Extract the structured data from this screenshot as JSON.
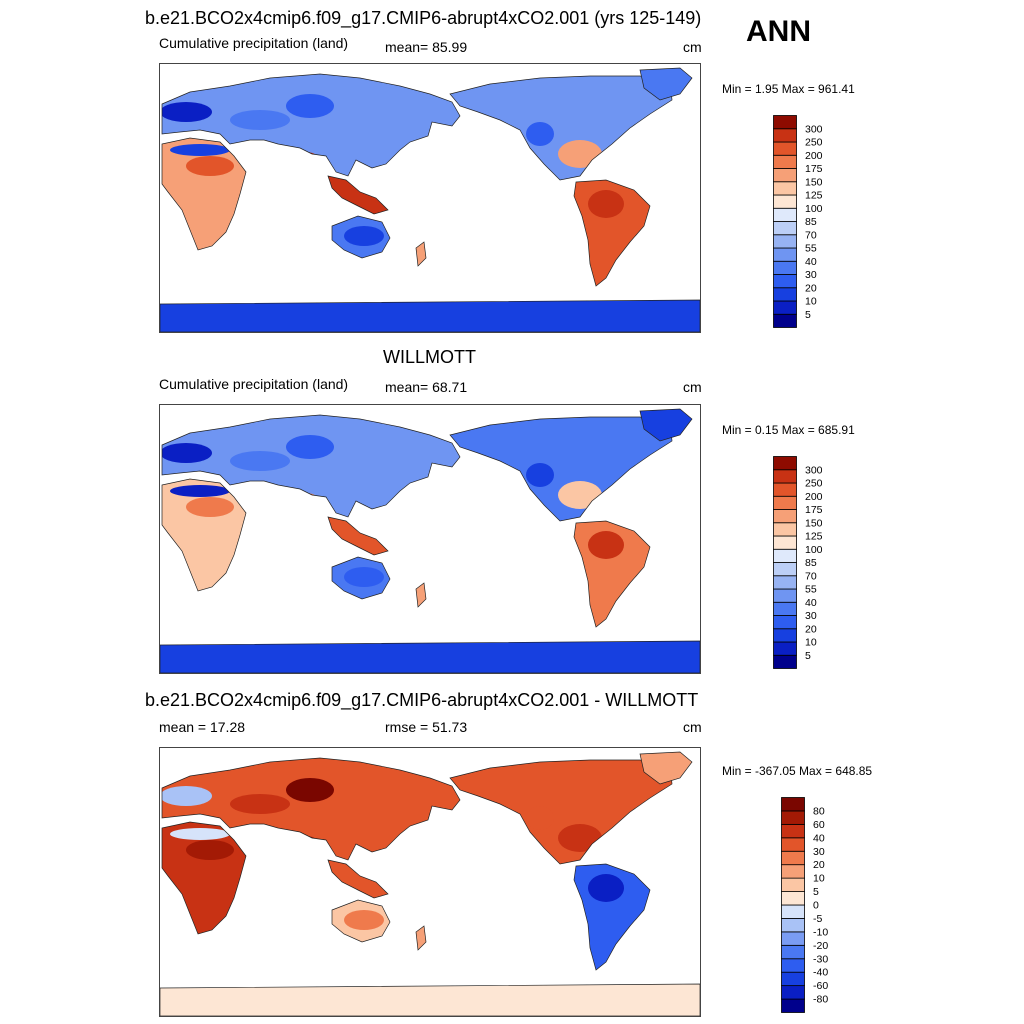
{
  "season": "ANN",
  "panels": [
    {
      "title": "b.e21.BCO2x4cmip6.f09_g17.CMIP6-abrupt4xCO2.001 (yrs 125-149)",
      "left_label": "Cumulative precipitation (land)",
      "center_label": "mean=  85.99",
      "units": "cm",
      "minmax": "Min =   1.95 Max = 961.41"
    },
    {
      "title": "WILLMOTT",
      "left_label": "Cumulative precipitation (land)",
      "center_label": "mean=  68.71",
      "units": "cm",
      "minmax": "Min =   0.15 Max = 685.91"
    },
    {
      "title": "b.e21.BCO2x4cmip6.f09_g17.CMIP6-abrupt4xCO2.001 - WILLMOTT",
      "left_label": "mean =  17.28",
      "center_label": "rmse =  51.73",
      "units": "cm",
      "minmax": "Min = -367.05 Max = 648.85"
    }
  ],
  "chart_data": [
    {
      "type": "heatmap",
      "panel": "model",
      "title": "b.e21.BCO2x4cmip6.f09_g17.CMIP6-abrupt4xCO2.001 (yrs 125-149)",
      "variable": "Cumulative precipitation (land)",
      "units": "cm",
      "mean": 85.99,
      "min": 1.95,
      "max": 961.41,
      "colorbar_levels": [
        "5",
        "10",
        "20",
        "30",
        "40",
        "55",
        "70",
        "85",
        "100",
        "125",
        "150",
        "175",
        "200",
        "250",
        "300"
      ],
      "colorbar_colors": [
        "#00008c",
        "#0a1fc4",
        "#1740e0",
        "#2e5df0",
        "#4a78f2",
        "#6f95f2",
        "#97b3f3",
        "#bccff6",
        "#dfe9fb",
        "#fde6d4",
        "#fbc6a4",
        "#f6a077",
        "#ef7a4c",
        "#e2552a",
        "#c83214",
        "#8e0b00"
      ]
    },
    {
      "type": "heatmap",
      "panel": "observations",
      "title": "WILLMOTT",
      "variable": "Cumulative precipitation (land)",
      "units": "cm",
      "mean": 68.71,
      "min": 0.15,
      "max": 685.91,
      "colorbar_levels": [
        "5",
        "10",
        "20",
        "30",
        "40",
        "55",
        "70",
        "85",
        "100",
        "125",
        "150",
        "175",
        "200",
        "250",
        "300"
      ],
      "colorbar_colors": [
        "#00008c",
        "#0a1fc4",
        "#1740e0",
        "#2e5df0",
        "#4a78f2",
        "#6f95f2",
        "#97b3f3",
        "#bccff6",
        "#dfe9fb",
        "#fde6d4",
        "#fbc6a4",
        "#f6a077",
        "#ef7a4c",
        "#e2552a",
        "#c83214",
        "#8e0b00"
      ]
    },
    {
      "type": "heatmap",
      "panel": "difference",
      "title": "b.e21.BCO2x4cmip6.f09_g17.CMIP6-abrupt4xCO2.001 - WILLMOTT",
      "units": "cm",
      "mean": 17.28,
      "rmse": 51.73,
      "min": -367.05,
      "max": 648.85,
      "colorbar_levels": [
        "-80",
        "-60",
        "-40",
        "-30",
        "-20",
        "-10",
        "-5",
        "0",
        "5",
        "10",
        "20",
        "30",
        "40",
        "60",
        "80"
      ],
      "colorbar_colors": [
        "#00008c",
        "#0a1fc4",
        "#1740e0",
        "#2e5df0",
        "#4a78f2",
        "#7a9cf3",
        "#a9c2f6",
        "#d6e3fa",
        "#fde6d4",
        "#fbc6a4",
        "#f6a077",
        "#ef7a4c",
        "#e2552a",
        "#c83214",
        "#a31a05",
        "#7a0600"
      ]
    }
  ]
}
